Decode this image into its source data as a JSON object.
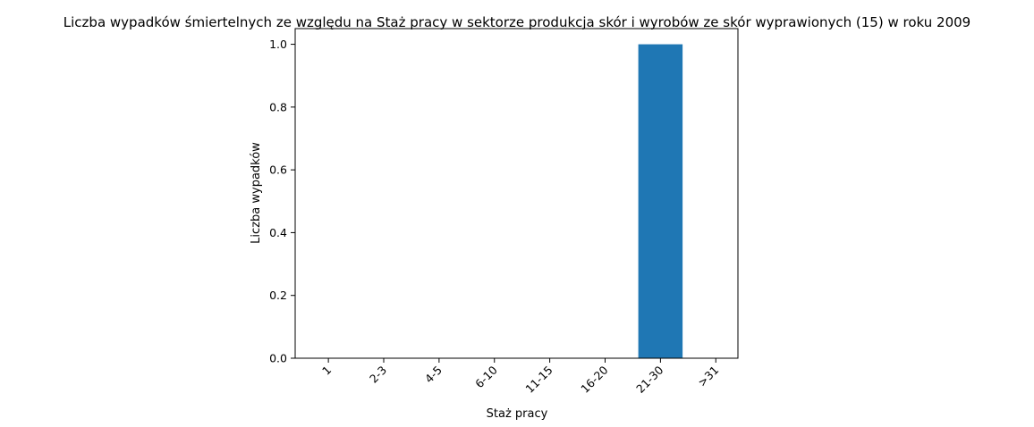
{
  "chart_data": {
    "type": "bar",
    "title": "Liczba wypadków śmiertelnych ze względu na Staż pracy w sektorze produkcja skór i wyrobów ze skór wyprawionych  (15) w roku 2009",
    "xlabel": "Staż pracy",
    "ylabel": "Liczba wypadków",
    "categories": [
      "1",
      "2-3",
      "4-5",
      "6-10",
      "11-15",
      "16-20",
      "21-30",
      ">31"
    ],
    "values": [
      0,
      0,
      0,
      0,
      0,
      0,
      1,
      0
    ],
    "ylim": [
      0,
      1.05
    ],
    "yticks": [
      "0.0",
      "0.2",
      "0.4",
      "0.6",
      "0.8",
      "1.0"
    ],
    "bar_color": "#1f77b4",
    "grid": false,
    "legend": "none"
  }
}
